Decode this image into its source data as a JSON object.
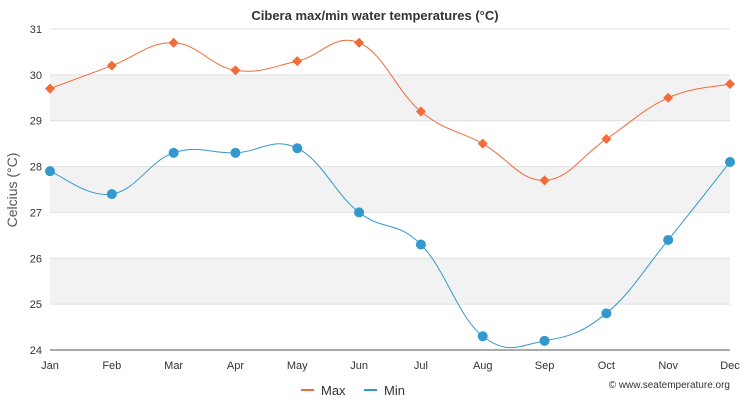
{
  "chart_data": {
    "type": "line",
    "title": "Cibera max/min water temperatures (°C)",
    "xlabel": "",
    "ylabel": "Celcius (°C)",
    "categories": [
      "Jan",
      "Feb",
      "Mar",
      "Apr",
      "May",
      "Jun",
      "Jul",
      "Aug",
      "Sep",
      "Oct",
      "Nov",
      "Dec"
    ],
    "series": [
      {
        "name": "Max",
        "color": "#f26b38",
        "marker": "diamond",
        "values": [
          29.7,
          30.2,
          30.7,
          30.1,
          30.3,
          30.7,
          29.2,
          28.5,
          27.7,
          28.6,
          29.5,
          29.8
        ]
      },
      {
        "name": "Min",
        "color": "#3399cc",
        "marker": "circle",
        "values": [
          27.9,
          27.4,
          28.3,
          28.3,
          28.4,
          27.0,
          26.3,
          24.3,
          24.2,
          24.8,
          26.4,
          28.1
        ]
      }
    ],
    "ylim": [
      24,
      31
    ],
    "yticks": [
      24,
      25,
      26,
      27,
      28,
      29,
      30,
      31
    ],
    "legend_position": "bottom-center",
    "credit": "© www.seatemperature.org"
  }
}
